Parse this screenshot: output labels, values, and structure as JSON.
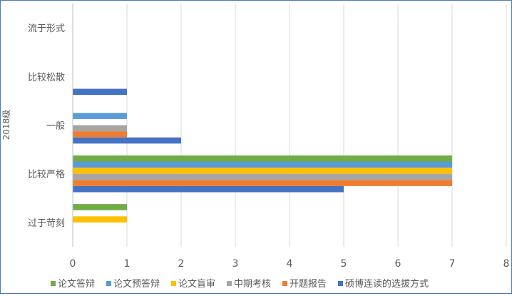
{
  "chart_data": {
    "type": "bar",
    "orientation": "horizontal",
    "group_label": "2018级",
    "categories": [
      "流于形式",
      "比较松散",
      "一般",
      "比较严格",
      "过于苛刻"
    ],
    "series": [
      {
        "name": "论文答辩",
        "color": "#70ad47",
        "values": [
          0,
          0,
          0,
          7,
          1
        ]
      },
      {
        "name": "论文预答辩",
        "color": "#5b9bd5",
        "values": [
          0,
          0,
          1,
          7,
          0
        ]
      },
      {
        "name": "论文盲审",
        "color": "#ffc000",
        "values": [
          0,
          0,
          0,
          7,
          1
        ]
      },
      {
        "name": "中期考核",
        "color": "#a5a5a5",
        "values": [
          0,
          0,
          1,
          7,
          0
        ]
      },
      {
        "name": "开题报告",
        "color": "#ed7d31",
        "values": [
          0,
          0,
          1,
          7,
          0
        ]
      },
      {
        "name": "硕博连读的选拔方式",
        "color": "#4472c4",
        "values": [
          0,
          1,
          2,
          5,
          0
        ]
      }
    ],
    "xlim": [
      0,
      8
    ],
    "xticks": [
      "0",
      "1",
      "2",
      "3",
      "4",
      "5",
      "6",
      "7",
      "8"
    ],
    "grid": true,
    "legend_position": "bottom"
  }
}
